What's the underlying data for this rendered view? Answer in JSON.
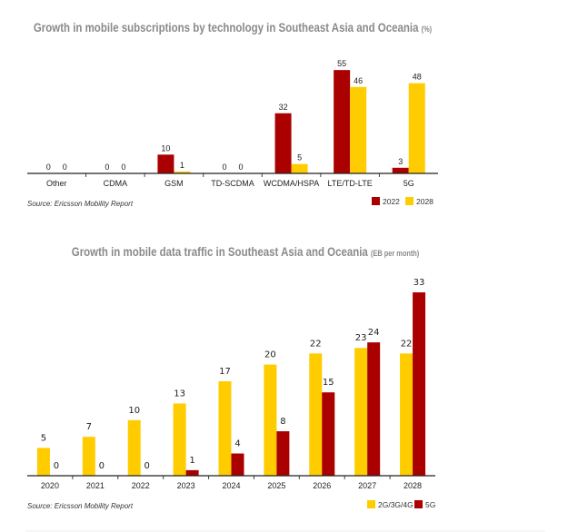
{
  "chart_data": [
    {
      "type": "bar",
      "title": "Growth in mobile subscriptions by technology in Southeast Asia and Oceania",
      "unit": "(%)",
      "categories": [
        "Other",
        "CDMA",
        "GSM",
        "TD-SCDMA",
        "WCDMA/HSPA",
        "LTE/TD-LTE",
        "5G"
      ],
      "series": [
        {
          "name": "2022",
          "color": "#aa0000",
          "values": [
            0,
            0,
            10,
            0,
            32,
            55,
            3
          ]
        },
        {
          "name": "2028",
          "color": "#ffcc00",
          "values": [
            0,
            0,
            1,
            0,
            5,
            46,
            48
          ]
        }
      ],
      "source": "Source: Ericsson Mobility Report",
      "ylim": [
        0,
        60
      ],
      "grid": false,
      "legend": "bottom-right"
    },
    {
      "type": "bar",
      "title": "Growth in mobile data traffic in Southeast Asia and Oceania",
      "unit": "(EB per month)",
      "categories": [
        "2020",
        "2021",
        "2022",
        "2023",
        "2024",
        "2025",
        "2026",
        "2027",
        "2028"
      ],
      "series": [
        {
          "name": "2G/3G/4G",
          "color": "#ffcc00",
          "values": [
            5,
            7,
            10,
            13,
            17,
            20,
            22,
            23,
            22
          ]
        },
        {
          "name": "5G",
          "color": "#aa0000",
          "values": [
            0,
            0,
            0,
            1,
            4,
            8,
            15,
            24,
            33
          ]
        }
      ],
      "source": "Source: Ericsson Mobility Report",
      "ylim": [
        0,
        36
      ],
      "grid": false,
      "legend": "bottom-right"
    }
  ]
}
